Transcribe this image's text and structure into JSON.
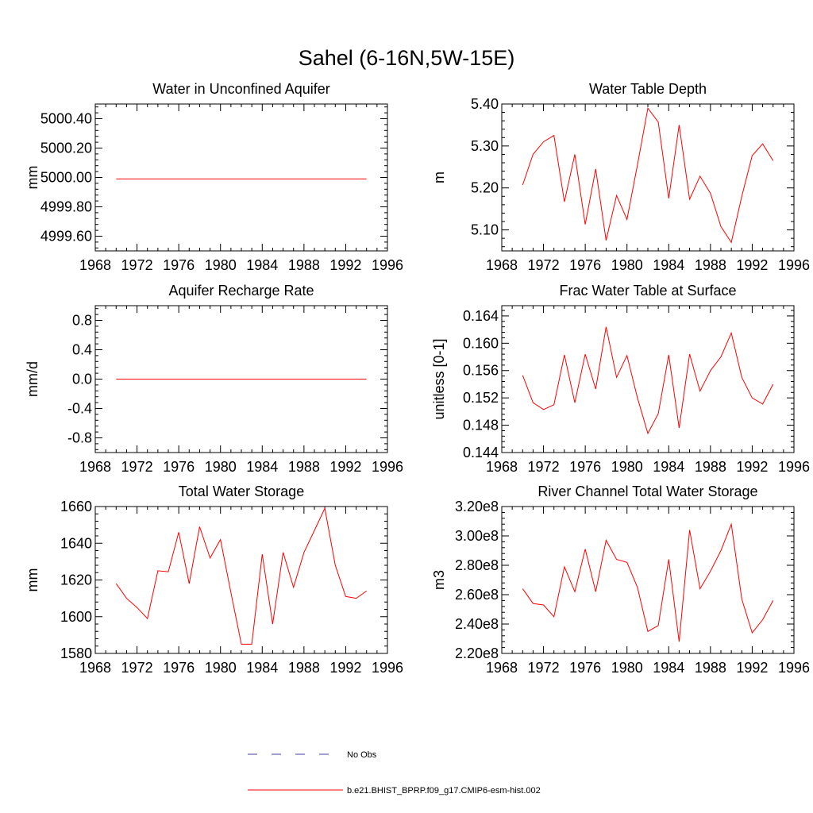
{
  "figure_title": "Sahel (6-16N,5W-15E)",
  "colors": {
    "model": "#ff0000",
    "obs": "#3f3fa6"
  },
  "legend": {
    "obs_label": "No Obs",
    "model_label": "b.e21.BHIST_BPRP.f09_g17.CMIP6-esm-hist.002"
  },
  "chart_data": [
    {
      "type": "line",
      "title": "Water in Unconfined Aquifer",
      "ylabel": "mm",
      "xlim": [
        1968,
        1996
      ],
      "ylim": [
        4999.5,
        5000.5
      ],
      "x_ticks": [
        1968,
        1972,
        1976,
        1980,
        1984,
        1988,
        1992,
        1996
      ],
      "y_ticks": [
        4999.6,
        4999.8,
        5000.0,
        5000.2,
        5000.4
      ],
      "y_tick_labels": [
        "4999.60",
        "4999.80",
        "5000.00",
        "5000.20",
        "5000.40"
      ],
      "x": [
        1970,
        1971,
        1972,
        1973,
        1974,
        1975,
        1976,
        1977,
        1978,
        1979,
        1980,
        1981,
        1982,
        1983,
        1984,
        1985,
        1986,
        1987,
        1988,
        1989,
        1990,
        1991,
        1992,
        1993,
        1994
      ],
      "values": [
        4999.99,
        4999.99,
        4999.99,
        4999.99,
        4999.99,
        4999.99,
        4999.99,
        4999.99,
        4999.99,
        4999.99,
        4999.99,
        4999.99,
        4999.99,
        4999.99,
        4999.99,
        4999.99,
        4999.99,
        4999.99,
        4999.99,
        4999.99,
        4999.99,
        4999.99,
        4999.99,
        4999.99,
        4999.99
      ]
    },
    {
      "type": "line",
      "title": "Water Table Depth",
      "ylabel": "m",
      "xlim": [
        1968,
        1996
      ],
      "ylim": [
        5.05,
        5.4
      ],
      "x_ticks": [
        1968,
        1972,
        1976,
        1980,
        1984,
        1988,
        1992,
        1996
      ],
      "y_ticks": [
        5.1,
        5.2,
        5.3,
        5.4
      ],
      "y_tick_labels": [
        "5.10",
        "5.20",
        "5.30",
        "5.40"
      ],
      "x": [
        1970,
        1971,
        1972,
        1973,
        1974,
        1975,
        1976,
        1977,
        1978,
        1979,
        1980,
        1981,
        1982,
        1983,
        1984,
        1985,
        1986,
        1987,
        1988,
        1989,
        1990,
        1991,
        1992,
        1993,
        1994
      ],
      "values": [
        5.207,
        5.28,
        5.31,
        5.325,
        5.167,
        5.28,
        5.113,
        5.245,
        5.075,
        5.182,
        5.125,
        5.255,
        5.39,
        5.357,
        5.175,
        5.35,
        5.173,
        5.228,
        5.187,
        5.108,
        5.07,
        5.18,
        5.277,
        5.305,
        5.265
      ]
    },
    {
      "type": "line",
      "title": "Aquifer Recharge Rate",
      "ylabel": "mm/d",
      "xlim": [
        1968,
        1996
      ],
      "ylim": [
        -1.0,
        1.0
      ],
      "x_ticks": [
        1968,
        1972,
        1976,
        1980,
        1984,
        1988,
        1992,
        1996
      ],
      "y_ticks": [
        -0.8,
        -0.4,
        0.0,
        0.4,
        0.8
      ],
      "y_tick_labels": [
        "-0.8",
        "-0.4",
        "0.0",
        "0.4",
        "0.8"
      ],
      "x": [
        1970,
        1971,
        1972,
        1973,
        1974,
        1975,
        1976,
        1977,
        1978,
        1979,
        1980,
        1981,
        1982,
        1983,
        1984,
        1985,
        1986,
        1987,
        1988,
        1989,
        1990,
        1991,
        1992,
        1993,
        1994
      ],
      "values": [
        0,
        0,
        0,
        0,
        0,
        0,
        0,
        0,
        0,
        0,
        0,
        0,
        0,
        0,
        0,
        0,
        0,
        0,
        0,
        0,
        0,
        0,
        0,
        0,
        0
      ]
    },
    {
      "type": "line",
      "title": "Frac Water Table at Surface",
      "ylabel": "unitless [0-1]",
      "xlim": [
        1968,
        1996
      ],
      "ylim": [
        0.144,
        0.1655
      ],
      "x_ticks": [
        1968,
        1972,
        1976,
        1980,
        1984,
        1988,
        1992,
        1996
      ],
      "y_ticks": [
        0.144,
        0.148,
        0.152,
        0.156,
        0.16,
        0.164
      ],
      "y_tick_labels": [
        "0.144",
        "0.148",
        "0.152",
        "0.156",
        "0.160",
        "0.164"
      ],
      "x": [
        1970,
        1971,
        1972,
        1973,
        1974,
        1975,
        1976,
        1977,
        1978,
        1979,
        1980,
        1981,
        1982,
        1983,
        1984,
        1985,
        1986,
        1987,
        1988,
        1989,
        1990,
        1991,
        1992,
        1993,
        1994
      ],
      "values": [
        0.1553,
        0.1513,
        0.1503,
        0.151,
        0.1583,
        0.1513,
        0.1584,
        0.1533,
        0.1624,
        0.155,
        0.1582,
        0.152,
        0.1468,
        0.1497,
        0.1583,
        0.1476,
        0.1584,
        0.153,
        0.156,
        0.158,
        0.1615,
        0.155,
        0.152,
        0.1511,
        0.154
      ]
    },
    {
      "type": "line",
      "title": "Total Water Storage",
      "ylabel": "mm",
      "xlim": [
        1968,
        1996
      ],
      "ylim": [
        1580,
        1660
      ],
      "x_ticks": [
        1968,
        1972,
        1976,
        1980,
        1984,
        1988,
        1992,
        1996
      ],
      "y_ticks": [
        1580,
        1600,
        1620,
        1640,
        1660
      ],
      "y_tick_labels": [
        "1580",
        "1600",
        "1620",
        "1640",
        "1660"
      ],
      "x": [
        1970,
        1971,
        1972,
        1973,
        1974,
        1975,
        1976,
        1977,
        1978,
        1979,
        1980,
        1981,
        1982,
        1983,
        1984,
        1985,
        1986,
        1987,
        1988,
        1989,
        1990,
        1991,
        1992,
        1993,
        1994
      ],
      "values": [
        1618,
        1610,
        1605,
        1599,
        1625,
        1624.5,
        1646,
        1618,
        1649,
        1632,
        1642,
        1613,
        1585,
        1585,
        1634,
        1596,
        1635,
        1616,
        1635,
        1647,
        1659,
        1628,
        1611,
        1610,
        1614
      ]
    },
    {
      "type": "line",
      "title": "River Channel Total Water Storage",
      "ylabel": "m3",
      "xlim": [
        1968,
        1996
      ],
      "ylim": [
        220000000.0,
        320000000.0
      ],
      "x_ticks": [
        1968,
        1972,
        1976,
        1980,
        1984,
        1988,
        1992,
        1996
      ],
      "y_ticks": [
        220000000.0,
        240000000.0,
        260000000.0,
        280000000.0,
        300000000.0,
        320000000.0
      ],
      "y_tick_labels": [
        "2.20e8",
        "2.40e8",
        "2.60e8",
        "2.80e8",
        "3.00e8",
        "3.20e8"
      ],
      "x": [
        1970,
        1971,
        1972,
        1973,
        1974,
        1975,
        1976,
        1977,
        1978,
        1979,
        1980,
        1981,
        1982,
        1983,
        1984,
        1985,
        1986,
        1987,
        1988,
        1989,
        1990,
        1991,
        1992,
        1993,
        1994
      ],
      "values": [
        264000000.0,
        254000000.0,
        253000000.0,
        245000000.0,
        279000000.0,
        262000000.0,
        291000000.0,
        262000000.0,
        297000000.0,
        284000000.0,
        282000000.0,
        265000000.0,
        235000000.0,
        239000000.0,
        284000000.0,
        228000000.0,
        304000000.0,
        264000000.0,
        276000000.0,
        290000000.0,
        308000000.0,
        257000000.0,
        234000000.0,
        243000000.0,
        256000000.0
      ]
    }
  ]
}
